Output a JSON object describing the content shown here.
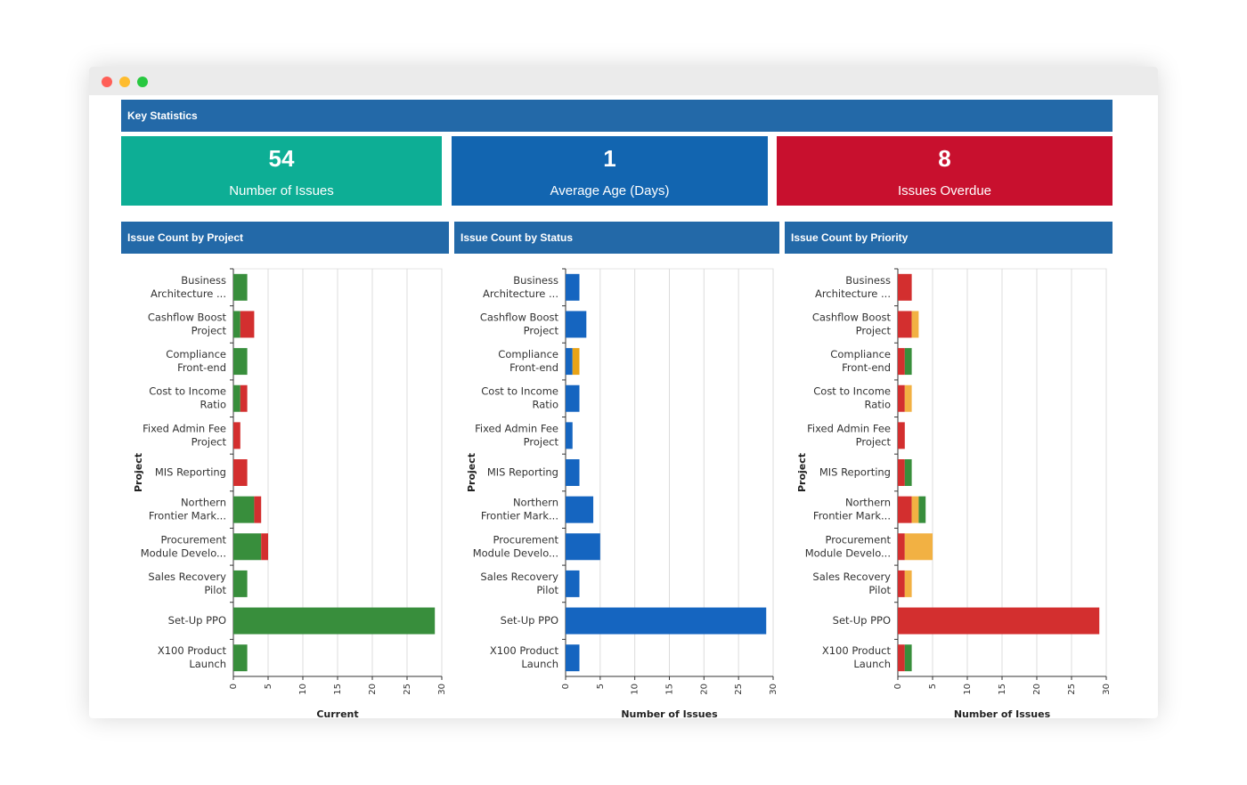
{
  "window": {
    "controls": [
      "close",
      "minimize",
      "maximize"
    ]
  },
  "key_statistics": {
    "header": "Key Statistics",
    "cards": [
      {
        "value": "54",
        "label": "Number of Issues",
        "color": "#0dae95"
      },
      {
        "value": "1",
        "label": "Average Age (Days)",
        "color": "#1265b0"
      },
      {
        "value": "8",
        "label": "Issues Overdue",
        "color": "#c8102e"
      }
    ]
  },
  "panels": {
    "project": {
      "header": "Issue Count by Project"
    },
    "status": {
      "header": "Issue Count by Status"
    },
    "priority": {
      "header": "Issue Count by Priority"
    }
  },
  "chart_data": [
    {
      "type": "bar",
      "orientation": "horizontal",
      "stacked": true,
      "title": "Issue Count by Project",
      "ylabel": "Project",
      "xlabel": "Current",
      "categories": [
        [
          "Business",
          "Architecture ..."
        ],
        [
          "Cashflow Boost",
          "Project"
        ],
        [
          "Compliance",
          "Front-end"
        ],
        [
          "Cost to Income",
          "Ratio"
        ],
        [
          "Fixed Admin Fee",
          "Project"
        ],
        [
          "MIS Reporting"
        ],
        [
          "Northern",
          "Frontier Mark..."
        ],
        [
          "Procurement",
          "Module Develo..."
        ],
        [
          "Sales Recovery",
          "Pilot"
        ],
        [
          "Set-Up PPO"
        ],
        [
          "X100 Product",
          "Launch"
        ]
      ],
      "series": [
        {
          "color": "#388e3c",
          "values": [
            2,
            1,
            2,
            1,
            0,
            0,
            3,
            4,
            2,
            29,
            2
          ]
        },
        {
          "color": "#d32f2f",
          "values": [
            0,
            2,
            0,
            1,
            1,
            2,
            1,
            1,
            0,
            0,
            0
          ]
        }
      ],
      "xlim": [
        0,
        30
      ],
      "xticks": [
        0,
        5,
        10,
        15,
        20,
        25,
        30
      ],
      "grid": true
    },
    {
      "type": "bar",
      "orientation": "horizontal",
      "stacked": true,
      "title": "Issue Count by Status",
      "ylabel": "Project",
      "xlabel": "Number of Issues",
      "categories": [
        [
          "Business",
          "Architecture ..."
        ],
        [
          "Cashflow Boost",
          "Project"
        ],
        [
          "Compliance",
          "Front-end"
        ],
        [
          "Cost to Income",
          "Ratio"
        ],
        [
          "Fixed Admin Fee",
          "Project"
        ],
        [
          "MIS Reporting"
        ],
        [
          "Northern",
          "Frontier Mark..."
        ],
        [
          "Procurement",
          "Module Develo..."
        ],
        [
          "Sales Recovery",
          "Pilot"
        ],
        [
          "Set-Up PPO"
        ],
        [
          "X100 Product",
          "Launch"
        ]
      ],
      "series": [
        {
          "color": "#1565c0",
          "values": [
            2,
            3,
            1,
            2,
            1,
            2,
            4,
            5,
            2,
            29,
            2
          ]
        },
        {
          "color": "#e8a317",
          "values": [
            0,
            0,
            1,
            0,
            0,
            0,
            0,
            0,
            0,
            0,
            0
          ]
        }
      ],
      "xlim": [
        0,
        30
      ],
      "xticks": [
        0,
        5,
        10,
        15,
        20,
        25,
        30
      ],
      "grid": true
    },
    {
      "type": "bar",
      "orientation": "horizontal",
      "stacked": true,
      "title": "Issue Count by Priority",
      "ylabel": "Project",
      "xlabel": "Number of Issues",
      "categories": [
        [
          "Business",
          "Architecture ..."
        ],
        [
          "Cashflow Boost",
          "Project"
        ],
        [
          "Compliance",
          "Front-end"
        ],
        [
          "Cost to Income",
          "Ratio"
        ],
        [
          "Fixed Admin Fee",
          "Project"
        ],
        [
          "MIS Reporting"
        ],
        [
          "Northern",
          "Frontier Mark..."
        ],
        [
          "Procurement",
          "Module Develo..."
        ],
        [
          "Sales Recovery",
          "Pilot"
        ],
        [
          "Set-Up PPO"
        ],
        [
          "X100 Product",
          "Launch"
        ]
      ],
      "series": [
        {
          "color": "#d32f2f",
          "values": [
            2,
            2,
            1,
            1,
            1,
            1,
            2,
            1,
            1,
            29,
            1
          ]
        },
        {
          "color": "#f2b143",
          "values": [
            0,
            1,
            0,
            1,
            0,
            0,
            1,
            4,
            1,
            0,
            0
          ]
        },
        {
          "color": "#388e3c",
          "values": [
            0,
            0,
            1,
            0,
            0,
            1,
            1,
            0,
            0,
            0,
            1
          ]
        }
      ],
      "xlim": [
        0,
        30
      ],
      "xticks": [
        0,
        5,
        10,
        15,
        20,
        25,
        30
      ],
      "grid": true
    }
  ]
}
